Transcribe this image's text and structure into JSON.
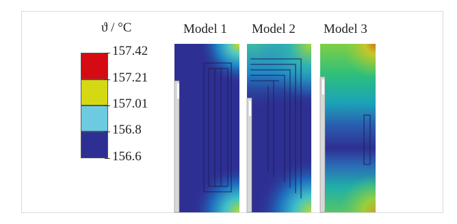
{
  "legend": {
    "unit_label": "ϑ / °C",
    "ticks": [
      "157.42",
      "157.21",
      "157.01",
      "156.8",
      "156.6"
    ],
    "colors": [
      "#d40b12",
      "#d4d914",
      "#6ccbe0",
      "#2e2f92"
    ]
  },
  "models": [
    {
      "label": "Model 1"
    },
    {
      "label": "Model 2"
    },
    {
      "label": "Model 3"
    }
  ]
}
